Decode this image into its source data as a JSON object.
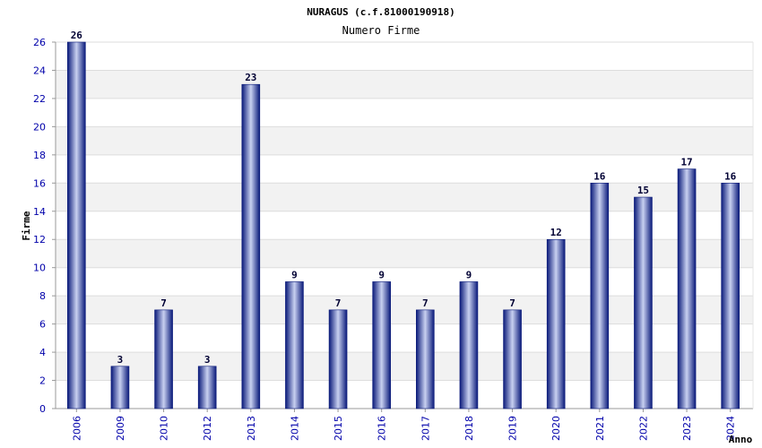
{
  "chart_data": {
    "type": "bar",
    "title": "NURAGUS (c.f.81000190918)",
    "subtitle": "Numero Firme",
    "xlabel": "Anno",
    "ylabel": "Firme",
    "ylim": [
      0,
      26
    ],
    "yticks": [
      0,
      2,
      4,
      6,
      8,
      10,
      12,
      14,
      16,
      18,
      20,
      22,
      24,
      26
    ],
    "grid": true,
    "categories": [
      "2006",
      "2009",
      "2010",
      "2012",
      "2013",
      "2014",
      "2015",
      "2016",
      "2017",
      "2018",
      "2019",
      "2020",
      "2021",
      "2022",
      "2023",
      "2024"
    ],
    "values": [
      26,
      3,
      7,
      3,
      23,
      9,
      7,
      9,
      7,
      9,
      7,
      12,
      16,
      15,
      17,
      16
    ],
    "colors": {
      "bar_dark": "#0a1a7a",
      "bar_light": "#c8d0f0",
      "band": "#f2f2f2",
      "grid": "#dddddd",
      "axis": "#999999",
      "tick_text": "#0000aa"
    }
  }
}
